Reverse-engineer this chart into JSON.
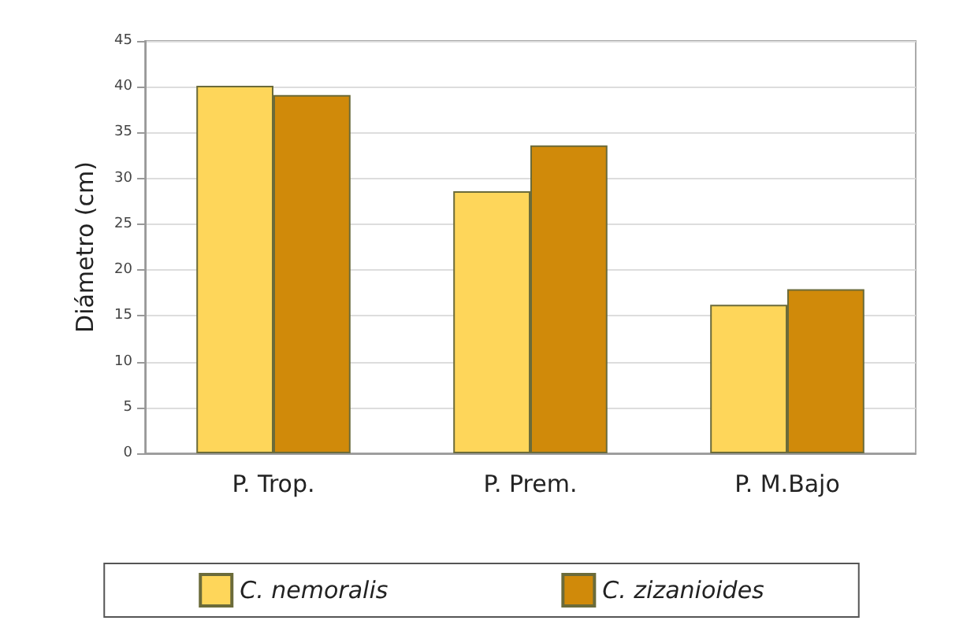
{
  "chart_data": {
    "type": "bar",
    "ylabel": "Diámetro (cm)",
    "categories": [
      "P. Trop.",
      "P. Prem.",
      "P. M.Bajo"
    ],
    "series": [
      {
        "name": "C. nemoralis",
        "color": "#fed65a",
        "values": [
          40.1,
          28.6,
          16.2
        ]
      },
      {
        "name": "C. zizanioides",
        "color": "#d08a0a",
        "values": [
          39.1,
          33.6,
          17.9
        ]
      }
    ],
    "ylim": [
      0,
      45
    ],
    "yticks": [
      0,
      5,
      10,
      15,
      20,
      25,
      30,
      35,
      40,
      45
    ],
    "grid": "y",
    "legend": "bottom"
  }
}
